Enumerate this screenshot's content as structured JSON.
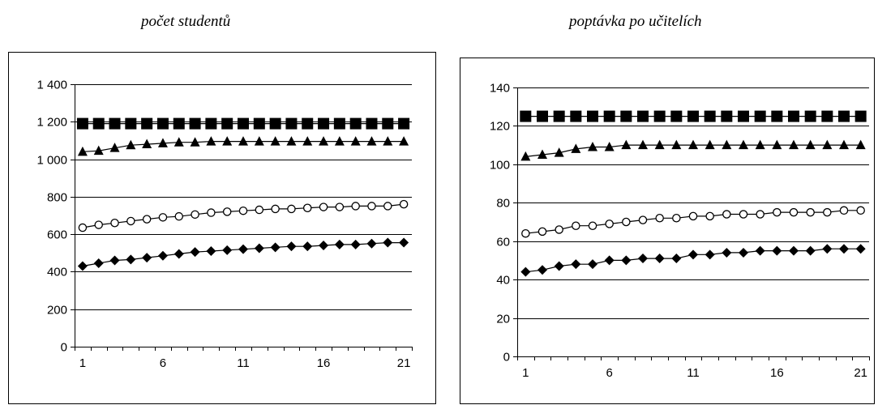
{
  "chart_data": [
    {
      "type": "line",
      "title": "počet studentů",
      "xlabel": "",
      "ylabel": "",
      "x": [
        1,
        2,
        3,
        4,
        5,
        6,
        7,
        8,
        9,
        10,
        11,
        12,
        13,
        14,
        15,
        16,
        17,
        18,
        19,
        20,
        21
      ],
      "x_ticks": [
        1,
        6,
        11,
        16,
        21
      ],
      "x_tick_labels": [
        "1",
        "6",
        "11",
        "16",
        "21"
      ],
      "ylim": [
        0,
        1400
      ],
      "y_ticks": [
        0,
        200,
        400,
        600,
        800,
        1000,
        1200,
        1400
      ],
      "y_tick_labels": [
        "0",
        "200",
        "400",
        "600",
        "800",
        "1 000",
        "1 200",
        "1 400"
      ],
      "grid": "horizontal",
      "legend": "none",
      "series": [
        {
          "marker": "square",
          "color": "#000000",
          "values": [
            1190,
            1190,
            1190,
            1190,
            1190,
            1190,
            1190,
            1190,
            1190,
            1190,
            1190,
            1190,
            1190,
            1190,
            1190,
            1190,
            1190,
            1190,
            1190,
            1190,
            1190
          ]
        },
        {
          "marker": "triangle",
          "color": "#000000",
          "values": [
            1040,
            1045,
            1060,
            1075,
            1080,
            1085,
            1090,
            1090,
            1095,
            1095,
            1095,
            1095,
            1095,
            1095,
            1095,
            1095,
            1095,
            1095,
            1095,
            1095,
            1095
          ]
        },
        {
          "marker": "circle-open",
          "color": "#000000",
          "values": [
            635,
            650,
            660,
            670,
            680,
            690,
            695,
            705,
            715,
            720,
            725,
            730,
            735,
            735,
            740,
            745,
            745,
            750,
            750,
            750,
            760
          ]
        },
        {
          "marker": "diamond",
          "color": "#000000",
          "values": [
            430,
            445,
            460,
            465,
            475,
            485,
            495,
            505,
            510,
            515,
            520,
            525,
            530,
            535,
            535,
            540,
            545,
            545,
            550,
            555,
            555
          ]
        }
      ]
    },
    {
      "type": "line",
      "title": "poptávka po učitelích",
      "xlabel": "",
      "ylabel": "",
      "x": [
        1,
        2,
        3,
        4,
        5,
        6,
        7,
        8,
        9,
        10,
        11,
        12,
        13,
        14,
        15,
        16,
        17,
        18,
        19,
        20,
        21
      ],
      "x_ticks": [
        1,
        6,
        11,
        16,
        21
      ],
      "x_tick_labels": [
        "1",
        "6",
        "11",
        "16",
        "21"
      ],
      "ylim": [
        0,
        140
      ],
      "y_ticks": [
        0,
        20,
        40,
        60,
        80,
        100,
        120,
        140
      ],
      "y_tick_labels": [
        "0",
        "20",
        "40",
        "60",
        "80",
        "100",
        "120",
        "140"
      ],
      "grid": "horizontal",
      "legend": "none",
      "series": [
        {
          "marker": "square",
          "color": "#000000",
          "values": [
            125,
            125,
            125,
            125,
            125,
            125,
            125,
            125,
            125,
            125,
            125,
            125,
            125,
            125,
            125,
            125,
            125,
            125,
            125,
            125,
            125
          ]
        },
        {
          "marker": "triangle",
          "color": "#000000",
          "values": [
            104,
            105,
            106,
            108,
            109,
            109,
            110,
            110,
            110,
            110,
            110,
            110,
            110,
            110,
            110,
            110,
            110,
            110,
            110,
            110,
            110
          ]
        },
        {
          "marker": "circle-open",
          "color": "#000000",
          "values": [
            64,
            65,
            66,
            68,
            68,
            69,
            70,
            71,
            72,
            72,
            73,
            73,
            74,
            74,
            74,
            75,
            75,
            75,
            75,
            76,
            76
          ]
        },
        {
          "marker": "diamond",
          "color": "#000000",
          "values": [
            44,
            45,
            47,
            48,
            48,
            50,
            50,
            51,
            51,
            51,
            53,
            53,
            54,
            54,
            55,
            55,
            55,
            55,
            56,
            56,
            56
          ]
        }
      ]
    }
  ]
}
